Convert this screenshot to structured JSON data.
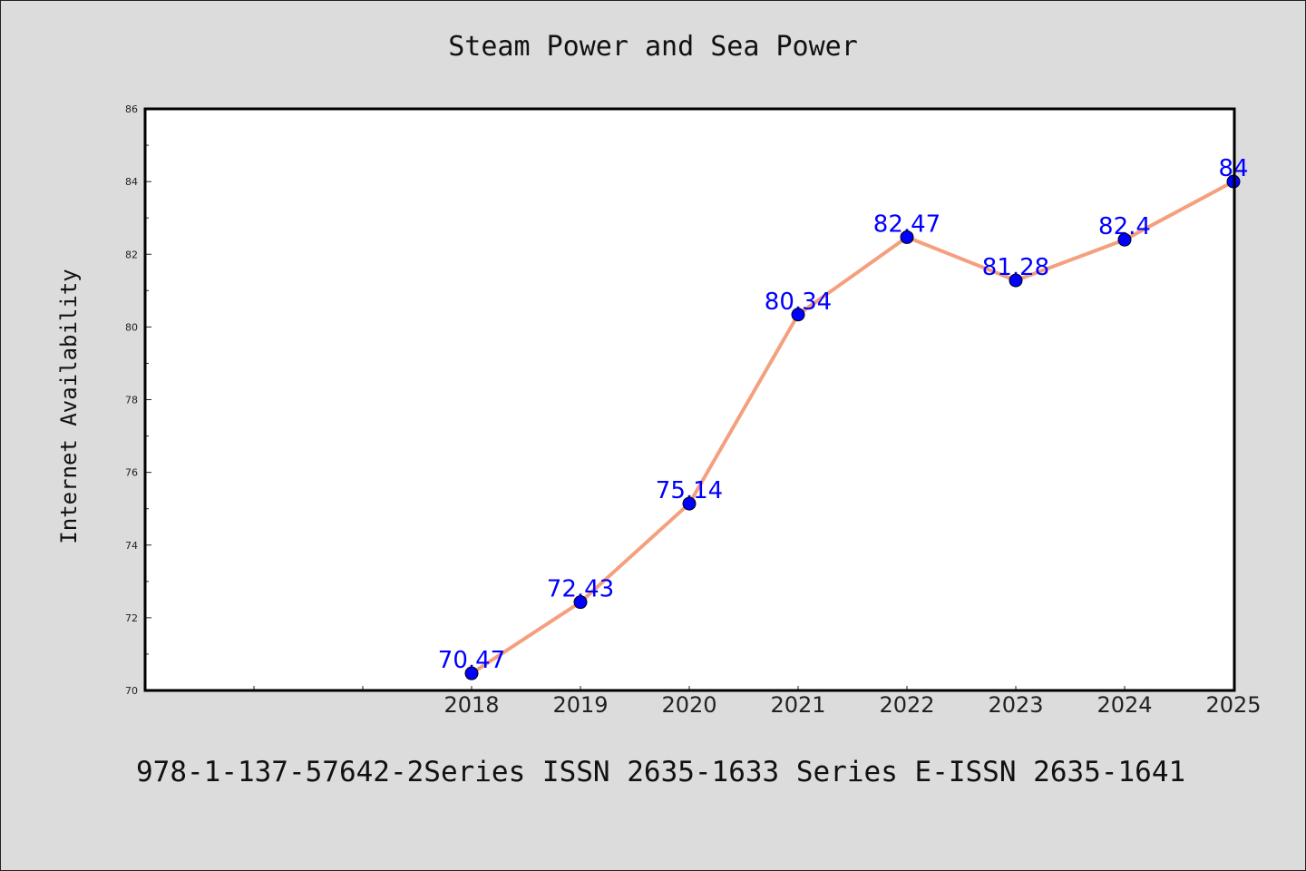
{
  "chart_data": {
    "type": "line",
    "title": "Steam Power and Sea Power",
    "xlabel": "",
    "ylabel": "Internet Availability",
    "categories": [
      "2018",
      "2019",
      "2020",
      "2021",
      "2022",
      "2023",
      "2024",
      "2025"
    ],
    "values": [
      70.47,
      72.43,
      75.14,
      80.34,
      82.47,
      81.28,
      82.4,
      84
    ],
    "data_labels": [
      "70.47",
      "72.43",
      "75.14",
      "80.34",
      "82.47",
      "81.28",
      "82.4",
      "84"
    ],
    "ylim": [
      70,
      86
    ],
    "yticks": [
      70,
      72,
      74,
      76,
      78,
      80,
      82,
      84,
      86
    ],
    "grid": false,
    "line_color": "#f4a07e",
    "marker_color": "#0000ff",
    "label_color": "#0000ff"
  },
  "footer": "978-1-137-57642-2Series ISSN 2635-1633 Series E-ISSN 2635-1641"
}
